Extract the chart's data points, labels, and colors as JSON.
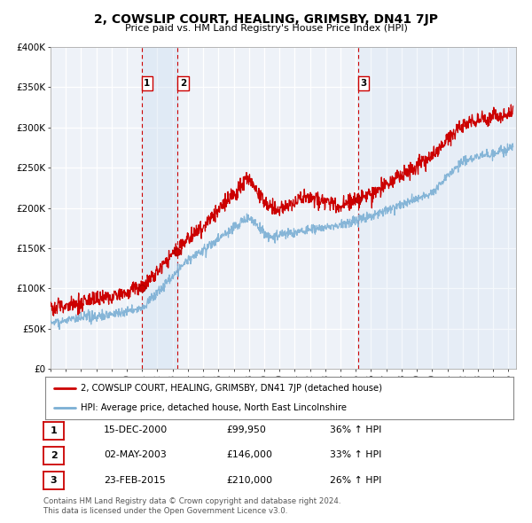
{
  "title": "2, COWSLIP COURT, HEALING, GRIMSBY, DN41 7JP",
  "subtitle": "Price paid vs. HM Land Registry's House Price Index (HPI)",
  "legend_line1": "2, COWSLIP COURT, HEALING, GRIMSBY, DN41 7JP (detached house)",
  "legend_line2": "HPI: Average price, detached house, North East Lincolnshire",
  "footer1": "Contains HM Land Registry data © Crown copyright and database right 2024.",
  "footer2": "This data is licensed under the Open Government Licence v3.0.",
  "price_color": "#cc0000",
  "hpi_color": "#7bafd4",
  "sale_marker_color": "#cc0000",
  "vline_color": "#cc0000",
  "vshade_color": "#ddeeff",
  "table_rows": [
    {
      "num": "1",
      "date": "15-DEC-2000",
      "price": "£99,950",
      "change": "36% ↑ HPI"
    },
    {
      "num": "2",
      "date": "02-MAY-2003",
      "price": "£146,000",
      "change": "33% ↑ HPI"
    },
    {
      "num": "3",
      "date": "23-FEB-2015",
      "price": "£210,000",
      "change": "26% ↑ HPI"
    }
  ],
  "sales": [
    {
      "year": 2000.96,
      "price": 99950,
      "label": "1"
    },
    {
      "year": 2003.33,
      "price": 146000,
      "label": "2"
    },
    {
      "year": 2015.14,
      "price": 210000,
      "label": "3"
    }
  ],
  "ylim": [
    0,
    400000
  ],
  "xlim": [
    1995.0,
    2025.5
  ],
  "yticks": [
    0,
    50000,
    100000,
    150000,
    200000,
    250000,
    300000,
    350000,
    400000
  ],
  "ytick_labels": [
    "£0",
    "£50K",
    "£100K",
    "£150K",
    "£200K",
    "£250K",
    "£300K",
    "£350K",
    "£400K"
  ],
  "xticks": [
    1995,
    1996,
    1997,
    1998,
    1999,
    2000,
    2001,
    2002,
    2003,
    2004,
    2005,
    2006,
    2007,
    2008,
    2009,
    2010,
    2011,
    2012,
    2013,
    2014,
    2015,
    2016,
    2017,
    2018,
    2019,
    2020,
    2021,
    2022,
    2023,
    2024,
    2025
  ],
  "background_color": "#eef2f8"
}
